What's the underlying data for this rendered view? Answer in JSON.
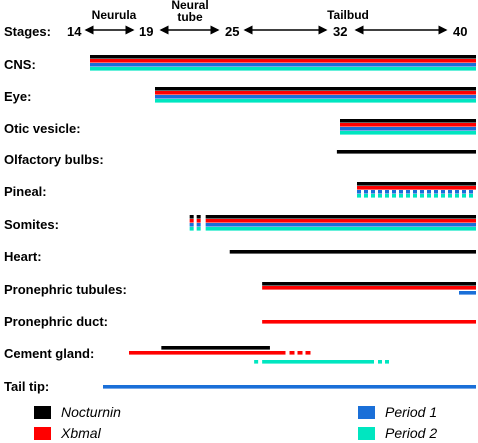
{
  "stages": {
    "label": "Stages:",
    "numbers": [
      "14",
      "19",
      "25",
      "32",
      "40"
    ],
    "phases": [
      "Neurula",
      "Neural tube",
      "Tailbud"
    ]
  },
  "colors": {
    "Nocturnin": "#000000",
    "Xbmal": "#ff0000",
    "Period 1": "#1a6fd8",
    "Period 2": "#00e6c0"
  },
  "tissues": [
    {
      "label": "CNS:",
      "segments": [
        {
          "gene": "Nocturnin",
          "start": 14,
          "end": 40
        },
        {
          "gene": "Xbmal",
          "start": 14,
          "end": 40
        },
        {
          "gene": "Period 1",
          "start": 14,
          "end": 40
        },
        {
          "gene": "Period 2",
          "start": 14,
          "end": 40
        }
      ]
    },
    {
      "label": "Eye:",
      "segments": [
        {
          "gene": "Nocturnin",
          "start": 19,
          "end": 40
        },
        {
          "gene": "Xbmal",
          "start": 19,
          "end": 40
        },
        {
          "gene": "Period 1",
          "start": 19,
          "end": 40
        },
        {
          "gene": "Period 2",
          "start": 19,
          "end": 40
        }
      ]
    },
    {
      "label": "Otic vesicle:",
      "segments": [
        {
          "gene": "Nocturnin",
          "start": 32,
          "end": 40
        },
        {
          "gene": "Xbmal",
          "start": 32,
          "end": 40
        },
        {
          "gene": "Period 1",
          "start": 32,
          "end": 40
        },
        {
          "gene": "Period 2",
          "start": 32,
          "end": 40
        }
      ]
    },
    {
      "label": "Olfactory bulbs:",
      "segments": [
        {
          "gene": "Nocturnin",
          "start": 31.8,
          "end": 40
        }
      ]
    },
    {
      "label": "Pineal:",
      "segments": [
        {
          "gene": "Nocturnin",
          "start": 33,
          "end": 40
        },
        {
          "gene": "Xbmal",
          "start": 33,
          "end": 40
        },
        {
          "gene": "Period 1",
          "start": 33,
          "end": 40,
          "style": "dotted"
        },
        {
          "gene": "Period 2",
          "start": 33,
          "end": 40,
          "style": "dotted"
        }
      ]
    },
    {
      "label": "Somites:",
      "segments": [
        {
          "gene": "Nocturnin",
          "start": 23,
          "end": 40,
          "leadDashes": true
        },
        {
          "gene": "Xbmal",
          "start": 23,
          "end": 40,
          "leadDashes": true
        },
        {
          "gene": "Period 1",
          "start": 23,
          "end": 40,
          "leadDashes": true
        },
        {
          "gene": "Period 2",
          "start": 23,
          "end": 40,
          "leadDashes": true
        }
      ]
    },
    {
      "label": "Heart:",
      "segments": [
        {
          "gene": "Nocturnin",
          "start": 24.9,
          "end": 40
        }
      ]
    },
    {
      "label": "Pronephric tubules:",
      "segments": [
        {
          "gene": "Nocturnin",
          "start": 27,
          "end": 40
        },
        {
          "gene": "Xbmal",
          "start": 27,
          "end": 40
        },
        {
          "gene": "Period 1",
          "start": 39,
          "end": 40
        }
      ]
    },
    {
      "label": "Pronephric duct:",
      "segments": [
        {
          "gene": "Xbmal",
          "start": 27,
          "end": 40
        }
      ]
    },
    {
      "label": "Cement gland:",
      "segments": [
        {
          "gene": "Nocturnin",
          "start": 19.5,
          "end": 27.5
        },
        {
          "gene": "Xbmal",
          "start": 17,
          "end": 28.5,
          "trailDashes": true
        },
        {
          "gene": "Period 2",
          "start": 27,
          "end": 34,
          "bothDashes": true
        }
      ]
    },
    {
      "label": "Tail tip:",
      "segments": [
        {
          "gene": "Period 1",
          "start": 15,
          "end": 40
        }
      ]
    }
  ],
  "legend": [
    {
      "gene": "Nocturnin",
      "label": "Nocturnin"
    },
    {
      "gene": "Xbmal",
      "label": "Xbmal"
    },
    {
      "gene": "Period 1",
      "label": "Period 1"
    },
    {
      "gene": "Period 2",
      "label": "Period 2"
    }
  ]
}
